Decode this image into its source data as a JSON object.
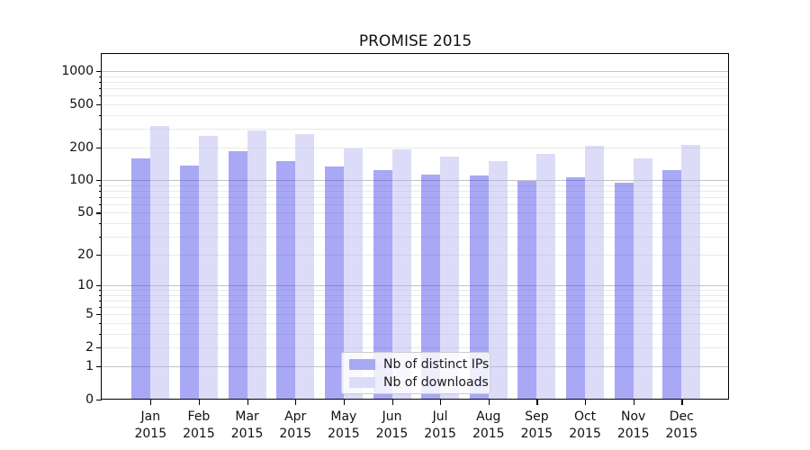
{
  "title": "PROMISE 2015",
  "legend": {
    "items": [
      {
        "label": "Nb of distinct IPs",
        "swatch_color": "#a8a8f4"
      },
      {
        "label": "Nb of downloads",
        "swatch_color": "#dcdcf8"
      }
    ]
  },
  "axes": {
    "yticks": [
      0,
      1,
      2,
      5,
      10,
      20,
      50,
      100,
      200,
      500,
      1000
    ],
    "y_major_gridlines": [
      1,
      10,
      100,
      1000
    ],
    "x_months": [
      "Jan",
      "Feb",
      "Mar",
      "Apr",
      "May",
      "Jun",
      "Jul",
      "Aug",
      "Sep",
      "Oct",
      "Nov",
      "Dec"
    ],
    "x_year": "2015"
  },
  "chart_data": {
    "type": "bar",
    "title": "PROMISE 2015",
    "xlabel": "",
    "ylabel": "",
    "yscale": "log(1+v)",
    "ylim": [
      0,
      1440
    ],
    "yticks": [
      0,
      1,
      2,
      5,
      10,
      20,
      50,
      100,
      200,
      500,
      1000
    ],
    "grid": "on",
    "legend_position": "lower-center-inside",
    "categories": [
      "Jan 2015",
      "Feb 2015",
      "Mar 2015",
      "Apr 2015",
      "May 2015",
      "Jun 2015",
      "Jul 2015",
      "Aug 2015",
      "Sep 2015",
      "Oct 2015",
      "Nov 2015",
      "Dec 2015"
    ],
    "series": [
      {
        "name": "Nb of distinct IPs",
        "fill_rgba": "rgba(62,62,231,0.45)",
        "values": [
          160,
          137,
          186,
          150,
          134,
          124,
          112,
          111,
          98,
          107,
          95,
          124
        ]
      },
      {
        "name": "Nb of downloads",
        "fill_rgba": "rgba(177,177,239,0.45)",
        "values": [
          318,
          258,
          286,
          265,
          195,
          194,
          166,
          150,
          175,
          206,
          158,
          211
        ]
      }
    ]
  }
}
